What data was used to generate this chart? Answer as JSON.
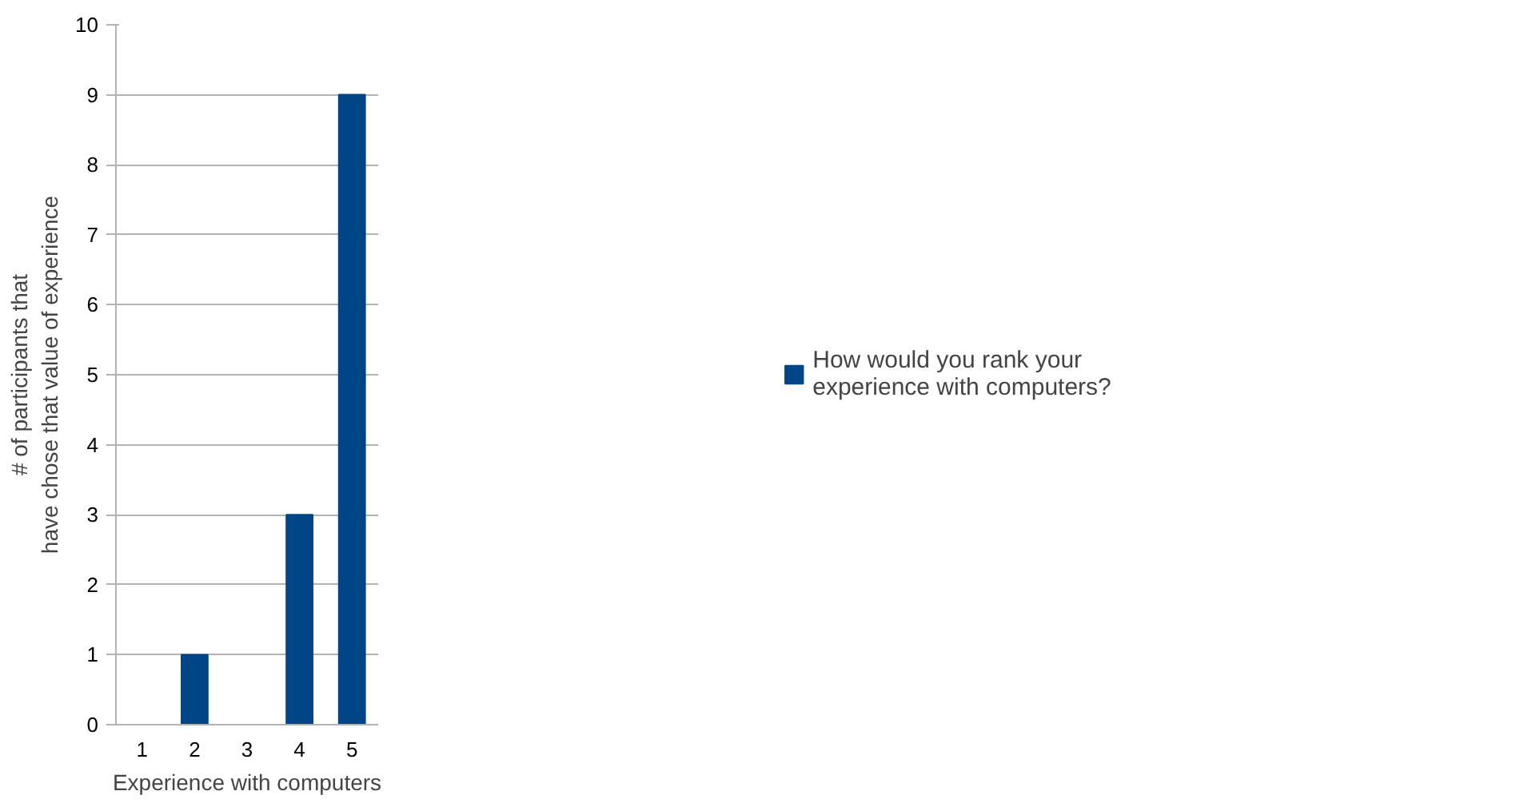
{
  "chart_data": {
    "type": "bar",
    "xlabel": "Experience with computers",
    "ylabel": "# of participants that\nhave chose that value of experience",
    "categories": [
      "1",
      "2",
      "3",
      "4",
      "5"
    ],
    "series": [
      {
        "name": "How would you rank your\nexperience with computers?",
        "color": "#004586",
        "values": [
          0,
          1,
          0,
          3,
          9
        ]
      }
    ],
    "ylim": [
      0,
      10
    ],
    "yticks": [
      0,
      1,
      2,
      3,
      4,
      5,
      6,
      7,
      8,
      9,
      10
    ],
    "grid": "y",
    "legend": "right"
  }
}
